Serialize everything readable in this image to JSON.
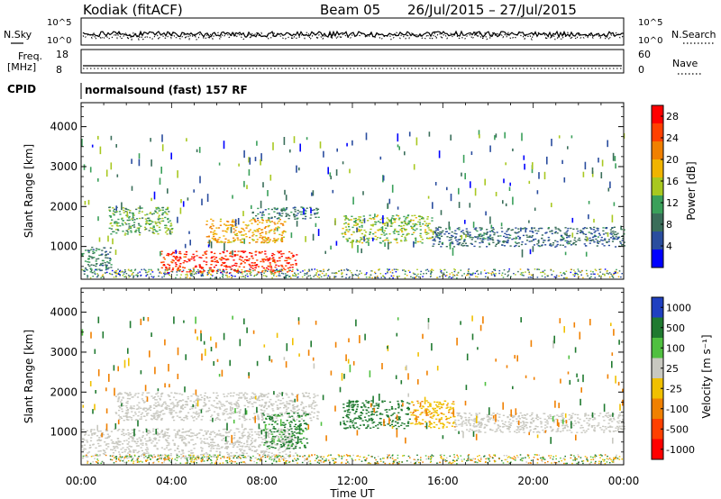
{
  "header": {
    "station": "Kodiak (fitACF)",
    "beam": "Beam 05",
    "date_range": "26/Jul/2015 – 27/Jul/2015"
  },
  "top_panels": {
    "nsky_label": "N.Sky",
    "nsky_ticks": [
      "10^5",
      "10^0"
    ],
    "nsearch_label": "N.Search",
    "nsearch_ticks": [
      "10^5",
      "10^0"
    ],
    "freq_label": "Freq.",
    "freq_unit": "[MHz]",
    "freq_ticks": [
      "18",
      "8"
    ],
    "nave_label": "Nave",
    "nave_ticks": [
      "60",
      "0"
    ],
    "cpid_label": "CPID",
    "cpid_text": "normalsound (fast) 157 RF"
  },
  "colors": {
    "power": [
      "#0000ff",
      "#2a4d9e",
      "#3a6e5a",
      "#3aa05a",
      "#a8c820",
      "#f0b400",
      "#f08000",
      "#ff4000",
      "#ff0000"
    ],
    "velocity": [
      "#2040c0",
      "#207a30",
      "#50c040",
      "#c8c8c0",
      "#f0c000",
      "#f08000",
      "#ff4000",
      "#ff0000"
    ],
    "ground_scatter": "#c8c8c0"
  },
  "chart_data": [
    {
      "type": "heatmap",
      "title": "",
      "xlabel": "",
      "ylabel": "Slant Range [km]",
      "x_ticks": [
        "00:00",
        "04:00",
        "08:00",
        "12:00",
        "16:00",
        "20:00",
        "00:00"
      ],
      "xlim_hours": [
        0,
        24
      ],
      "y_ticks": [
        1000,
        2000,
        3000,
        4000
      ],
      "ylim": [
        180,
        4600
      ],
      "colorbar": {
        "label": "Power [dB]",
        "ticks": [
          4,
          8,
          12,
          16,
          20,
          24,
          28
        ],
        "range": [
          0,
          30
        ]
      },
      "regions": [
        {
          "t0": 0.0,
          "t1": 1.3,
          "r0": 350,
          "r1": 1000,
          "value": 8
        },
        {
          "t0": 1.2,
          "t1": 4.0,
          "r0": 1300,
          "r1": 2000,
          "value": 12
        },
        {
          "t0": 3.5,
          "t1": 9.5,
          "r0": 350,
          "r1": 900,
          "value": 28
        },
        {
          "t0": 5.5,
          "t1": 9.0,
          "r0": 1100,
          "r1": 1700,
          "value": 20
        },
        {
          "t0": 7.5,
          "t1": 10.5,
          "r0": 1700,
          "r1": 2000,
          "value": 8
        },
        {
          "t0": 11.5,
          "t1": 15.5,
          "r0": 1100,
          "r1": 1800,
          "value": 14
        },
        {
          "t0": 15.5,
          "t1": 24.0,
          "r0": 1000,
          "r1": 1500,
          "value": 6
        }
      ]
    },
    {
      "type": "heatmap",
      "title": "",
      "xlabel": "Time UT",
      "ylabel": "Slant Range [km]",
      "x_ticks": [
        "00:00",
        "04:00",
        "08:00",
        "12:00",
        "16:00",
        "20:00",
        "00:00"
      ],
      "xlim_hours": [
        0,
        24
      ],
      "y_ticks": [
        1000,
        2000,
        3000,
        4000
      ],
      "ylim": [
        180,
        4600
      ],
      "colorbar": {
        "label": "Velocity [m s⁻¹]",
        "ticks": [
          1000,
          500,
          100,
          25,
          -25,
          -100,
          -500,
          -1000
        ]
      },
      "regions": [
        {
          "t0": 0.0,
          "t1": 9.5,
          "r0": 350,
          "r1": 1100,
          "value": 0
        },
        {
          "t0": 1.5,
          "t1": 10.5,
          "r0": 1300,
          "r1": 2000,
          "value": 0
        },
        {
          "t0": 8.0,
          "t1": 10.0,
          "r0": 600,
          "r1": 1500,
          "value": 150
        },
        {
          "t0": 11.5,
          "t1": 14.5,
          "r0": 1100,
          "r1": 1800,
          "value": 200
        },
        {
          "t0": 14.5,
          "t1": 16.5,
          "r0": 1100,
          "r1": 1800,
          "value": -80
        },
        {
          "t0": 16.5,
          "t1": 24.0,
          "r0": 1000,
          "r1": 1500,
          "value": 0
        }
      ]
    }
  ]
}
